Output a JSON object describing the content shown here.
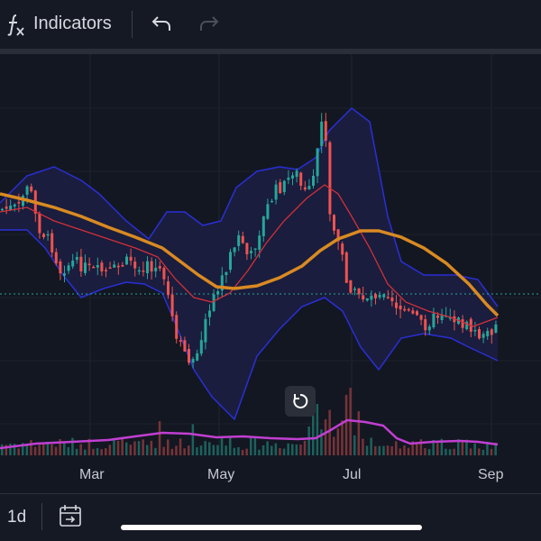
{
  "toolbar": {
    "indicators_label": "Indicators",
    "icons": [
      "fx-icon",
      "undo-icon",
      "redo-icon"
    ]
  },
  "chart": {
    "x_axis_labels": [
      "Mar",
      "May",
      "Jul",
      "Sep"
    ],
    "current_price_line": "dotted-teal",
    "colors": {
      "up": "#26a69a",
      "down": "#ef5350",
      "bollinger_band": "#2a2fd6",
      "bollinger_fill": "#1a1d3d",
      "fast_ma": "#d2303a",
      "slow_ma": "#d98a22",
      "volume_ma": "#c13fd1",
      "price_line": "#26a69a"
    }
  },
  "bottom_bar": {
    "interval": "1d",
    "icons": [
      "goto-date-icon"
    ]
  }
}
